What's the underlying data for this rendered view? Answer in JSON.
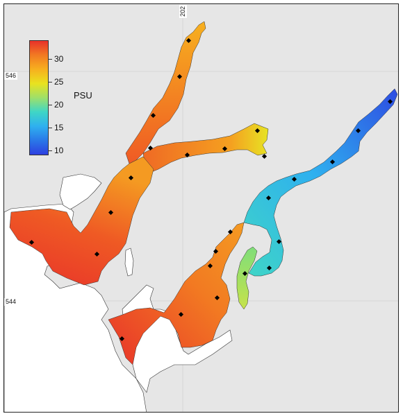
{
  "map": {
    "tick_x_top": "202",
    "tick_y_upper": "546",
    "tick_y_lower": "544",
    "colors": {
      "background": "#e6e6e6",
      "land": "#ffffff",
      "station": "#000000"
    }
  },
  "colorbar": {
    "units": "PSU",
    "min": 9,
    "max": 34,
    "ticks": [
      {
        "value": 30,
        "label": "30"
      },
      {
        "value": 25,
        "label": "25"
      },
      {
        "value": 20,
        "label": "20"
      },
      {
        "value": 15,
        "label": "15"
      },
      {
        "value": 10,
        "label": "10"
      }
    ],
    "palette": [
      "#e8322a",
      "#f27a22",
      "#f7b01f",
      "#e9e21f",
      "#9ee06a",
      "#3fd6c6",
      "#2fb0ef",
      "#2a78e8",
      "#2d3fe0"
    ]
  }
}
